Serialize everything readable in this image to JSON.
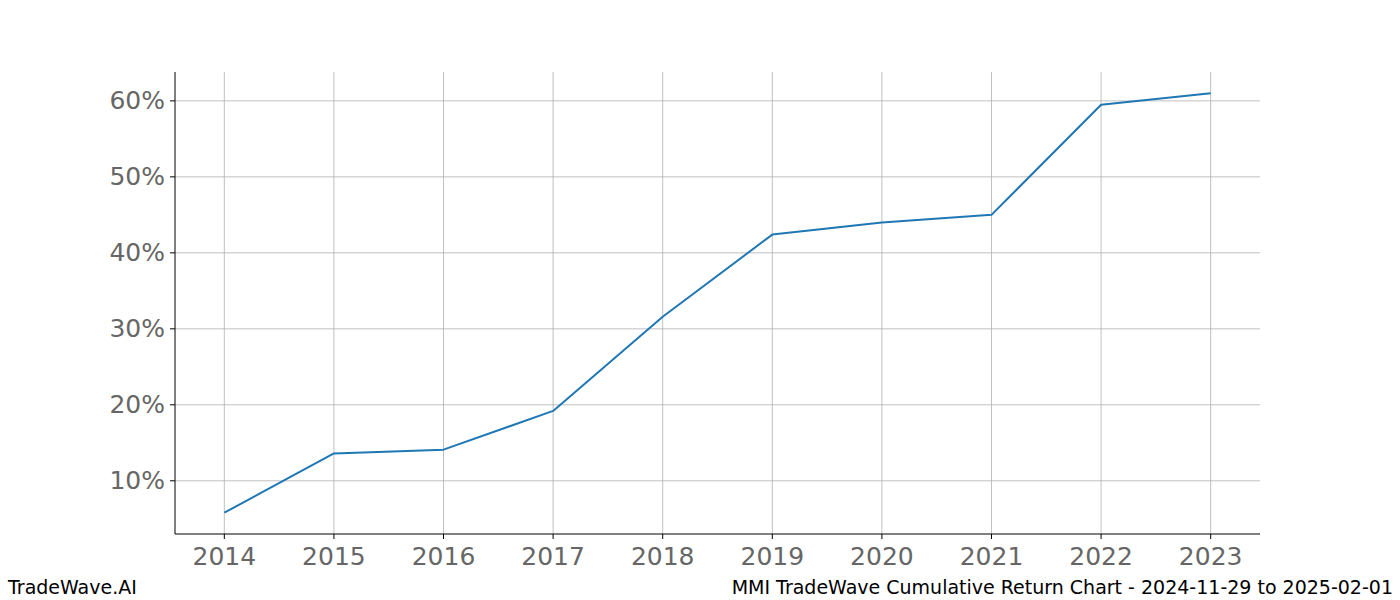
{
  "chart_data": {
    "type": "line",
    "title": "MMI TradeWave Cumulative Return Chart - 2024-11-29 to 2025-02-01",
    "annotations": [
      "TradeWave.AI"
    ],
    "x": [
      2014,
      2015,
      2016,
      2017,
      2018,
      2019,
      2020,
      2021,
      2022,
      2023
    ],
    "values": [
      5.8,
      13.6,
      14.1,
      19.2,
      31.6,
      42.4,
      44.0,
      45.0,
      59.5,
      61.0
    ],
    "color": "#1f77b4",
    "xlim": [
      2013.55,
      2023.45
    ],
    "xticks": [
      2014,
      2015,
      2016,
      2017,
      2018,
      2019,
      2020,
      2021,
      2022,
      2023
    ],
    "ylim": [
      3.0,
      63.8
    ],
    "yticks": [
      {
        "value": 10,
        "label": "10%"
      },
      {
        "value": 20,
        "label": "20%"
      },
      {
        "value": 30,
        "label": "30%"
      },
      {
        "value": 40,
        "label": "40%"
      },
      {
        "value": 50,
        "label": "50%"
      },
      {
        "value": 60,
        "label": "60%"
      }
    ],
    "grid": true
  }
}
